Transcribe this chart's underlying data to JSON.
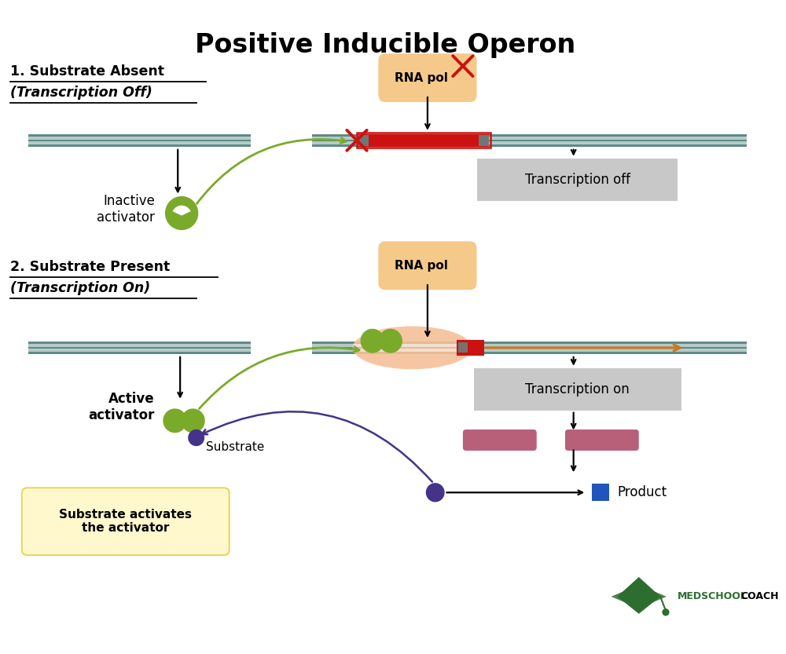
{
  "title": "Positive Inducible Operon",
  "bg_color": "#ffffff",
  "dna_color": "#5f8a87",
  "operator_color": "#cc1111",
  "activator_color": "#7aaa2a",
  "rna_pol_bg": "#f5c98a",
  "gray_box_color": "#c8c8c8",
  "orange_arrow_color": "#c87820",
  "purple_color": "#443388",
  "pink_color": "#b8607a",
  "blue_diamond_color": "#2255bb",
  "red_x_color": "#cc1111",
  "green_logo_color": "#2d6e30",
  "rna_pol_label": "RNA pol",
  "transcription_off_label": "Transcription off",
  "transcription_on_label": "Transcription on",
  "inactive_activator_label": "Inactive\nactivator",
  "active_activator_label": "Active\nactivator",
  "substrate_label": "Substrate",
  "product_label": "Product",
  "substrate_activates_label": "Substrate activates\nthe activator",
  "medschool_label": "MEDSCHOOL",
  "coach_label": "COACH",
  "s1_line1": "1. Substrate Absent",
  "s1_line2": "(Transcription Off)",
  "s2_line1": "2. Substrate Present",
  "s2_line2": "(Transcription On)"
}
